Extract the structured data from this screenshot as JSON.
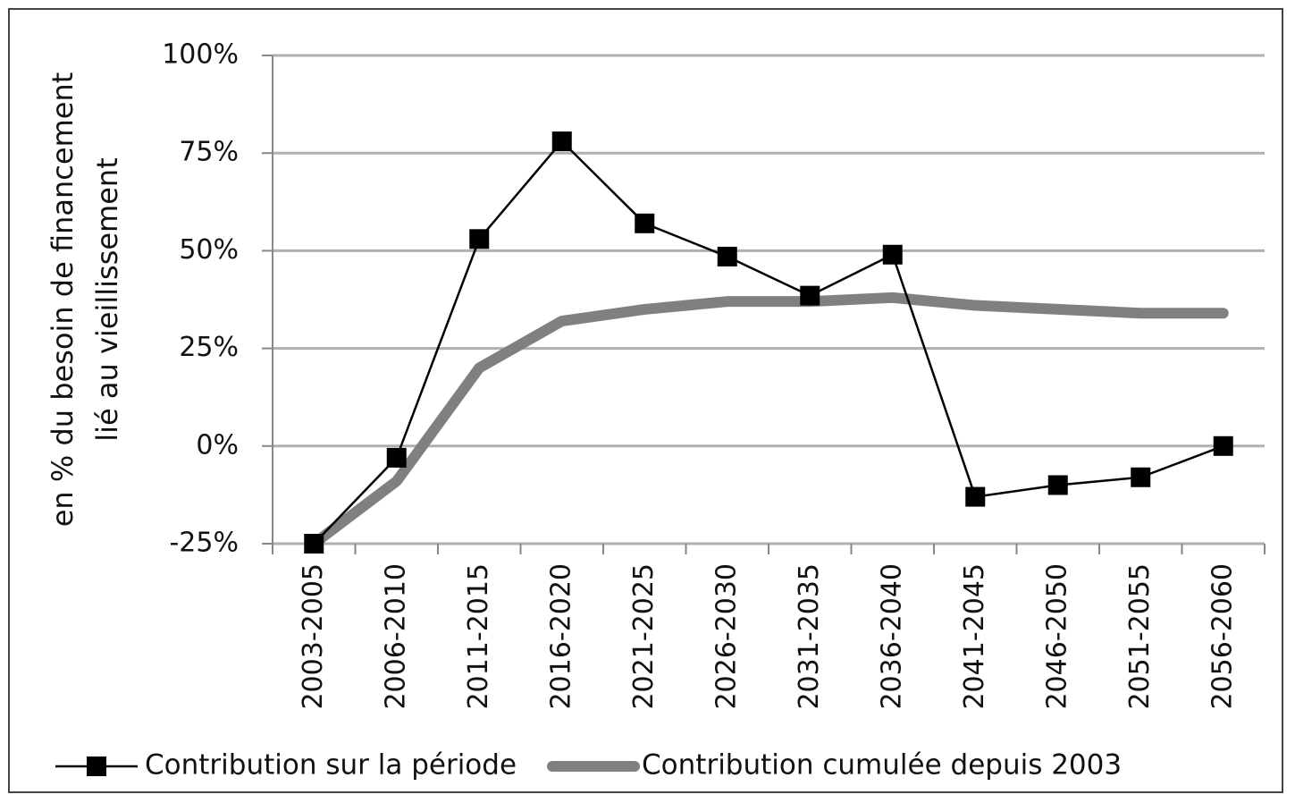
{
  "chart_data": {
    "type": "line",
    "ylabel": [
      "en % du besoin de financement",
      "lié au vieillissement"
    ],
    "categories": [
      "2003-2005",
      "2006-2010",
      "2011-2015",
      "2016-2020",
      "2021-2025",
      "2026-2030",
      "2031-2035",
      "2036-2040",
      "2041-2045",
      "2046-2050",
      "2051-2055",
      "2056-2060"
    ],
    "series": [
      {
        "name": "Contribution sur la période",
        "color": "#000000",
        "marker": "square",
        "values": [
          -25,
          -3,
          53,
          78,
          57,
          48.5,
          38.5,
          49,
          -13,
          -10,
          -8,
          0
        ]
      },
      {
        "name": "Contribution cumulée depuis 2003",
        "color": "#808080",
        "marker": "none",
        "values": [
          -25,
          -9,
          20,
          32,
          35,
          37,
          37,
          38,
          36,
          35,
          34,
          34
        ]
      }
    ],
    "ylim": [
      -25,
      100
    ],
    "yticks": [
      {
        "value": -25,
        "label": "-25%"
      },
      {
        "value": 0,
        "label": "0%"
      },
      {
        "value": 25,
        "label": "25%"
      },
      {
        "value": 50,
        "label": "50%"
      },
      {
        "value": 75,
        "label": "75%"
      },
      {
        "value": 100,
        "label": "100%"
      }
    ],
    "grid": true,
    "legend": "bottom"
  }
}
